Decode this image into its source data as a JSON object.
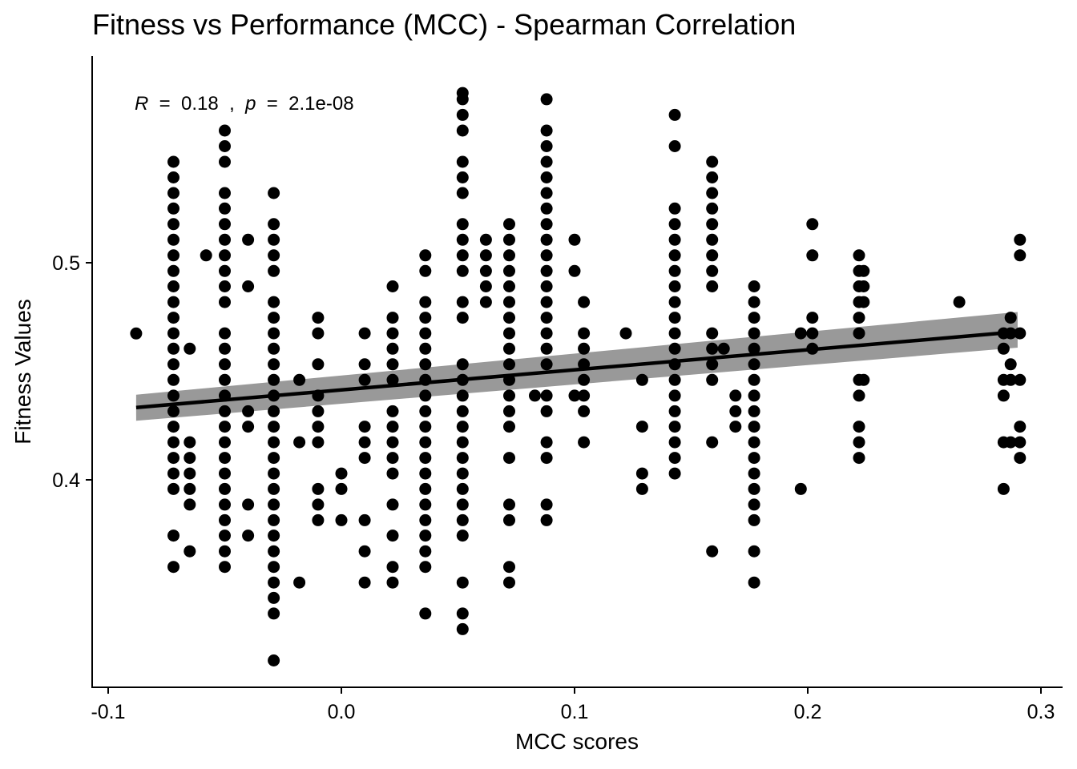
{
  "chart_data": {
    "type": "scatter",
    "title": "Fitness vs Performance (MCC) - Spearman Correlation",
    "xlabel": "MCC scores",
    "ylabel": "Fitness Values",
    "x_ticks": [
      -0.1,
      0.0,
      0.1,
      0.2,
      0.3
    ],
    "x_tick_labels": [
      "-0.1",
      "0.0",
      "0.1",
      "0.2",
      "0.3"
    ],
    "y_ticks": [
      0.4,
      0.5
    ],
    "y_tick_labels": [
      "0.4",
      "0.5"
    ],
    "xlim": [
      -0.107,
      0.31
    ],
    "ylim": [
      0.3115,
      0.5785
    ],
    "grid": false,
    "annotation": {
      "r_symbol": "R",
      "r_value": "0.18",
      "p_symbol": "p",
      "p_value": "2.1e-08"
    },
    "regression": {
      "x": [
        -0.088,
        0.29
      ],
      "y": [
        0.4333,
        0.4682
      ],
      "ci_x": [
        -0.088,
        0.29
      ],
      "ci_low": [
        0.4272,
        0.4609
      ],
      "ci_high": [
        0.4392,
        0.4773
      ]
    },
    "series": [
      {
        "columns": [
          {
            "x": -0.088,
            "y": [
              0.4674
            ]
          },
          {
            "x": -0.072,
            "y": [
              0.5465,
              0.5393,
              0.5321,
              0.525,
              0.5178,
              0.5106,
              0.5034,
              0.4962,
              0.4891,
              0.4819,
              0.4747,
              0.4675,
              0.4604,
              0.4532,
              0.446,
              0.4388,
              0.4316,
              0.4245,
              0.4173,
              0.4101,
              0.4029,
              0.3958,
              0.3743,
              0.3599
            ]
          },
          {
            "x": -0.065,
            "y": [
              0.4604,
              0.4173,
              0.4101,
              0.4029,
              0.3958,
              0.3886,
              0.3671
            ]
          },
          {
            "x": -0.058,
            "y": [
              0.5034
            ]
          },
          {
            "x": -0.05,
            "y": [
              0.5609,
              0.5537,
              0.5465,
              0.5321,
              0.525,
              0.5178,
              0.5106,
              0.5034,
              0.4962,
              0.4891,
              0.4819,
              0.4675,
              0.4604,
              0.4532,
              0.446,
              0.4388,
              0.4316,
              0.4245,
              0.4173,
              0.4101,
              0.4029,
              0.3958,
              0.3886,
              0.3814,
              0.3743,
              0.3671,
              0.3599
            ]
          },
          {
            "x": -0.04,
            "y": [
              0.5106,
              0.4891,
              0.4316,
              0.4245,
              0.3886,
              0.3743
            ]
          },
          {
            "x": -0.029,
            "y": [
              0.5321,
              0.5178,
              0.5106,
              0.5034,
              0.4962,
              0.4819,
              0.4747,
              0.4675,
              0.4604,
              0.4532,
              0.446,
              0.4388,
              0.4316,
              0.4245,
              0.4173,
              0.4101,
              0.4029,
              0.3958,
              0.3886,
              0.3814,
              0.3743,
              0.3671,
              0.3599,
              0.3527,
              0.3456,
              0.3384,
              0.3168
            ]
          },
          {
            "x": -0.018,
            "y": [
              0.446,
              0.4173,
              0.3527
            ]
          },
          {
            "x": -0.01,
            "y": [
              0.4747,
              0.4675,
              0.4532,
              0.4388,
              0.4316,
              0.4245,
              0.4173,
              0.3958,
              0.3886,
              0.3814
            ]
          },
          {
            "x": 0.0,
            "y": [
              0.4029,
              0.3958,
              0.3814
            ]
          },
          {
            "x": 0.01,
            "y": [
              0.4675,
              0.4532,
              0.446,
              0.4245,
              0.4173,
              0.4101,
              0.3814,
              0.3671,
              0.3527
            ]
          },
          {
            "x": 0.022,
            "y": [
              0.4891,
              0.4747,
              0.4675,
              0.4604,
              0.4532,
              0.446,
              0.4316,
              0.4245,
              0.4173,
              0.4101,
              0.4029,
              0.3886,
              0.3743,
              0.3599,
              0.3527
            ]
          },
          {
            "x": 0.036,
            "y": [
              0.5034,
              0.4962,
              0.4819,
              0.4747,
              0.4675,
              0.4604,
              0.4532,
              0.446,
              0.4388,
              0.4316,
              0.4245,
              0.4173,
              0.4101,
              0.4029,
              0.3958,
              0.3886,
              0.3814,
              0.3743,
              0.3671,
              0.3599,
              0.3384
            ]
          },
          {
            "x": 0.052,
            "y": [
              0.5782,
              0.5753,
              0.5681,
              0.5609,
              0.5465,
              0.5393,
              0.5321,
              0.5178,
              0.5106,
              0.5034,
              0.4962,
              0.4819,
              0.4747,
              0.4532,
              0.446,
              0.4388,
              0.4316,
              0.4245,
              0.4173,
              0.4101,
              0.4029,
              0.3958,
              0.3886,
              0.3814,
              0.3743,
              0.3527,
              0.3384,
              0.3312
            ]
          },
          {
            "x": 0.062,
            "y": [
              0.5106,
              0.5034,
              0.4962,
              0.4891,
              0.4819
            ]
          },
          {
            "x": 0.072,
            "y": [
              0.5178,
              0.5106,
              0.5034,
              0.4962,
              0.4891,
              0.4819,
              0.4747,
              0.4675,
              0.4604,
              0.4532,
              0.446,
              0.4388,
              0.4316,
              0.4245,
              0.4101,
              0.3886,
              0.3814,
              0.3599,
              0.3527
            ]
          },
          {
            "x": 0.083,
            "y": [
              0.4388
            ]
          },
          {
            "x": 0.088,
            "y": [
              0.5753,
              0.5609,
              0.5537,
              0.5465,
              0.5393,
              0.5321,
              0.525,
              0.5178,
              0.5106,
              0.5034,
              0.4962,
              0.4891,
              0.4819,
              0.4747,
              0.4675,
              0.4604,
              0.4532,
              0.4388,
              0.4316,
              0.4173,
              0.4101,
              0.3886,
              0.3814
            ]
          },
          {
            "x": 0.1,
            "y": [
              0.5106,
              0.4962,
              0.4388
            ]
          },
          {
            "x": 0.104,
            "y": [
              0.4819,
              0.4675,
              0.4604,
              0.4532,
              0.446,
              0.4388,
              0.4316,
              0.4173
            ]
          },
          {
            "x": 0.122,
            "y": [
              0.4675
            ]
          },
          {
            "x": 0.129,
            "y": [
              0.446,
              0.4245,
              0.4029,
              0.3958
            ]
          },
          {
            "x": 0.143,
            "y": [
              0.5681,
              0.5537,
              0.525,
              0.5178,
              0.5106,
              0.5034,
              0.4962,
              0.4891,
              0.4819,
              0.4747,
              0.4675,
              0.4604,
              0.4532,
              0.446,
              0.4388,
              0.4316,
              0.4245,
              0.4173,
              0.4101,
              0.4029
            ]
          },
          {
            "x": 0.159,
            "y": [
              0.5465,
              0.5393,
              0.5321,
              0.525,
              0.5178,
              0.5106,
              0.5034,
              0.4962,
              0.4891,
              0.4675,
              0.4604,
              0.4532,
              0.446,
              0.4173,
              0.3671
            ]
          },
          {
            "x": 0.164,
            "y": [
              0.4604
            ]
          },
          {
            "x": 0.169,
            "y": [
              0.4388,
              0.4316,
              0.4245
            ]
          },
          {
            "x": 0.177,
            "y": [
              0.4891,
              0.4819,
              0.4747,
              0.4675,
              0.4604,
              0.4532,
              0.446,
              0.4388,
              0.4316,
              0.4245,
              0.4173,
              0.4101,
              0.4029,
              0.3958,
              0.3886,
              0.3814,
              0.3671,
              0.3527
            ]
          },
          {
            "x": 0.197,
            "y": [
              0.4675,
              0.3958
            ]
          },
          {
            "x": 0.202,
            "y": [
              0.5178,
              0.5034,
              0.4747,
              0.4675,
              0.4604
            ]
          },
          {
            "x": 0.222,
            "y": [
              0.5034,
              0.4962,
              0.4891,
              0.4819,
              0.4747,
              0.4675,
              0.446,
              0.4388,
              0.4245,
              0.4173,
              0.4101
            ]
          },
          {
            "x": 0.224,
            "y": [
              0.4962,
              0.4891,
              0.4819,
              0.446
            ]
          },
          {
            "x": 0.265,
            "y": [
              0.4819
            ]
          },
          {
            "x": 0.284,
            "y": [
              0.4675,
              0.4604,
              0.446,
              0.4388,
              0.4173,
              0.3958
            ]
          },
          {
            "x": 0.287,
            "y": [
              0.4747,
              0.4675,
              0.4532,
              0.446,
              0.4173
            ]
          },
          {
            "x": 0.291,
            "y": [
              0.5106,
              0.5034,
              0.4675,
              0.446,
              0.4245,
              0.4173,
              0.4101
            ]
          }
        ]
      }
    ]
  }
}
